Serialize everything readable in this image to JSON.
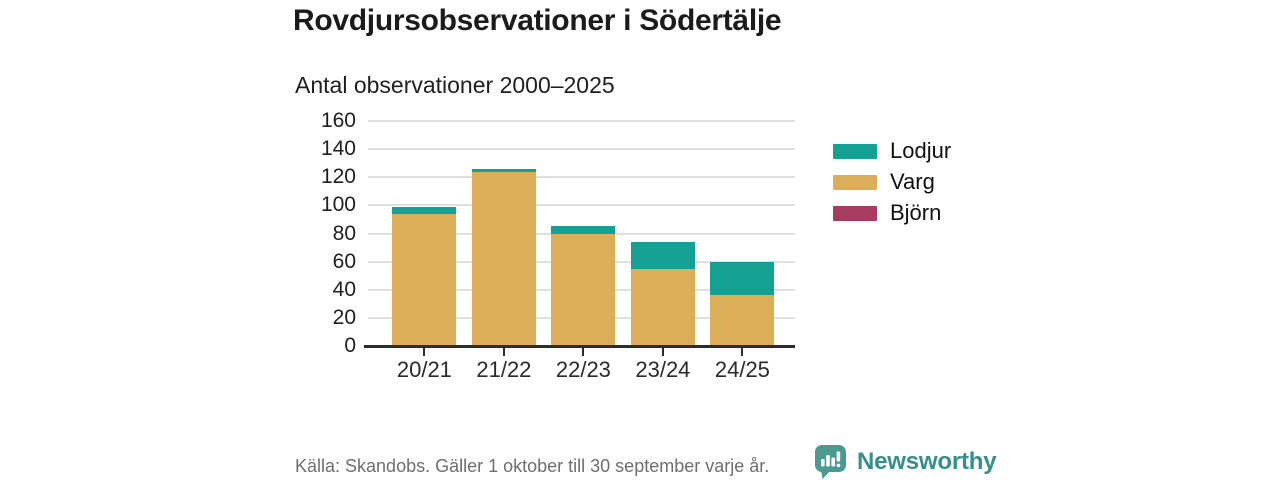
{
  "header": {
    "title": "Rovdjursobservationer i Södertälje",
    "subtitle": "Antal observationer 2000–2025"
  },
  "chart_data": {
    "type": "bar",
    "stacked": true,
    "title": "Rovdjursobservationer i Södertälje",
    "subtitle": "Antal observationer 2000–2025",
    "categories": [
      "20/21",
      "21/22",
      "22/23",
      "23/24",
      "24/25"
    ],
    "series": [
      {
        "name": "Lodjur",
        "color": "#14a092",
        "values": [
          5,
          2,
          5,
          19,
          24
        ]
      },
      {
        "name": "Varg",
        "color": "#dcae58",
        "values": [
          94,
          124,
          80,
          55,
          36
        ]
      },
      {
        "name": "Björn",
        "color": "#a83b60",
        "values": [
          0,
          0,
          0,
          0,
          0
        ]
      }
    ],
    "totals": [
      99,
      126,
      85,
      74,
      60
    ],
    "stack_order_bottom_to_top": [
      "Björn",
      "Varg",
      "Lodjur"
    ],
    "ylim": [
      0,
      160
    ],
    "yticks": [
      0,
      20,
      40,
      60,
      80,
      100,
      120,
      140,
      160
    ],
    "grid": true,
    "legend_position": "right",
    "xlabel": "",
    "ylabel": ""
  },
  "legend": {
    "items": [
      {
        "label": "Lodjur",
        "color": "#14a092"
      },
      {
        "label": "Varg",
        "color": "#dcae58"
      },
      {
        "label": "Björn",
        "color": "#a83b60"
      }
    ]
  },
  "footer": {
    "source": "Källa: Skandobs. Gäller 1 oktober till 30 september varje år.",
    "brand": "Newsworthy",
    "brand_color": "#33908b"
  }
}
